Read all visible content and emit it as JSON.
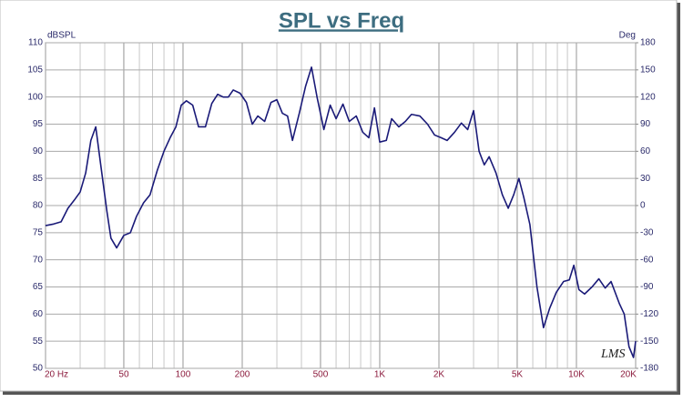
{
  "chart_data": {
    "type": "line",
    "title": "SPL vs Freq",
    "ylabel": "dBSPL",
    "y2label": "Deg",
    "watermark": "LMS",
    "xscale": "log",
    "grid": true,
    "xlim": [
      20,
      20000
    ],
    "xticks": [
      {
        "value": 20,
        "label": "20 Hz"
      },
      50,
      100,
      200,
      500,
      {
        "value": 1000,
        "label": "1K"
      },
      {
        "value": 2000,
        "label": "2K"
      },
      {
        "value": 5000,
        "label": "5K"
      },
      {
        "value": 10000,
        "label": "10K"
      },
      {
        "value": 20000,
        "label": "20K"
      }
    ],
    "ylim": [
      50,
      110
    ],
    "yticks": [
      50,
      55,
      60,
      65,
      70,
      75,
      80,
      85,
      90,
      95,
      100,
      105,
      110
    ],
    "y2lim": [
      -180,
      180
    ],
    "y2ticks": [
      -180,
      -150,
      -120,
      -90,
      -60,
      -30,
      0,
      30,
      60,
      90,
      120,
      150,
      180
    ],
    "x": [
      20,
      22,
      24,
      26,
      28,
      30,
      32,
      34,
      36,
      38,
      41,
      43,
      46,
      50,
      54,
      58,
      63,
      68,
      74,
      80,
      86,
      92,
      98,
      104,
      112,
      120,
      130,
      140,
      150,
      160,
      170,
      180,
      195,
      210,
      225,
      240,
      260,
      280,
      300,
      320,
      340,
      360,
      390,
      420,
      450,
      480,
      520,
      560,
      600,
      650,
      700,
      760,
      820,
      880,
      940,
      1000,
      1080,
      1150,
      1250,
      1350,
      1450,
      1600,
      1750,
      1900,
      2050,
      2200,
      2400,
      2600,
      2800,
      3000,
      3200,
      3400,
      3600,
      3900,
      4200,
      4500,
      4800,
      5100,
      5400,
      5800,
      6300,
      6800,
      7300,
      7900,
      8600,
      9200,
      9700,
      10300,
      11000,
      12000,
      13000,
      14000,
      15000,
      16500,
      17500,
      18500,
      19500,
      20000
    ],
    "series": [
      {
        "name": "SPL",
        "color": "#1a1a78",
        "values": [
          76.3,
          76.6,
          77,
          79.5,
          81,
          82.5,
          86,
          92,
          94.5,
          88,
          79,
          74,
          72.2,
          74.5,
          75,
          78,
          80.5,
          82,
          86.5,
          90,
          92.5,
          94.5,
          98.5,
          99.3,
          98.5,
          94.5,
          94.5,
          98.8,
          100.5,
          100,
          100,
          101.3,
          100.7,
          99,
          95,
          96.5,
          95.5,
          99,
          99.5,
          97,
          96.5,
          92,
          97,
          102,
          105.5,
          100,
          94,
          98.5,
          96,
          98.7,
          95.5,
          96.5,
          93.5,
          92.5,
          98,
          91.7,
          92,
          96,
          94.5,
          95.5,
          96.8,
          96.5,
          95,
          93,
          92.5,
          92,
          93.5,
          95.2,
          94,
          97.5,
          90,
          87.5,
          89,
          86,
          82,
          79.5,
          82,
          85,
          81.5,
          76.5,
          65,
          57.5,
          61,
          64,
          66,
          66.3,
          69,
          64.5,
          63.7,
          65,
          66.5,
          64.8,
          66,
          62,
          60,
          54,
          52,
          55
        ]
      }
    ]
  }
}
